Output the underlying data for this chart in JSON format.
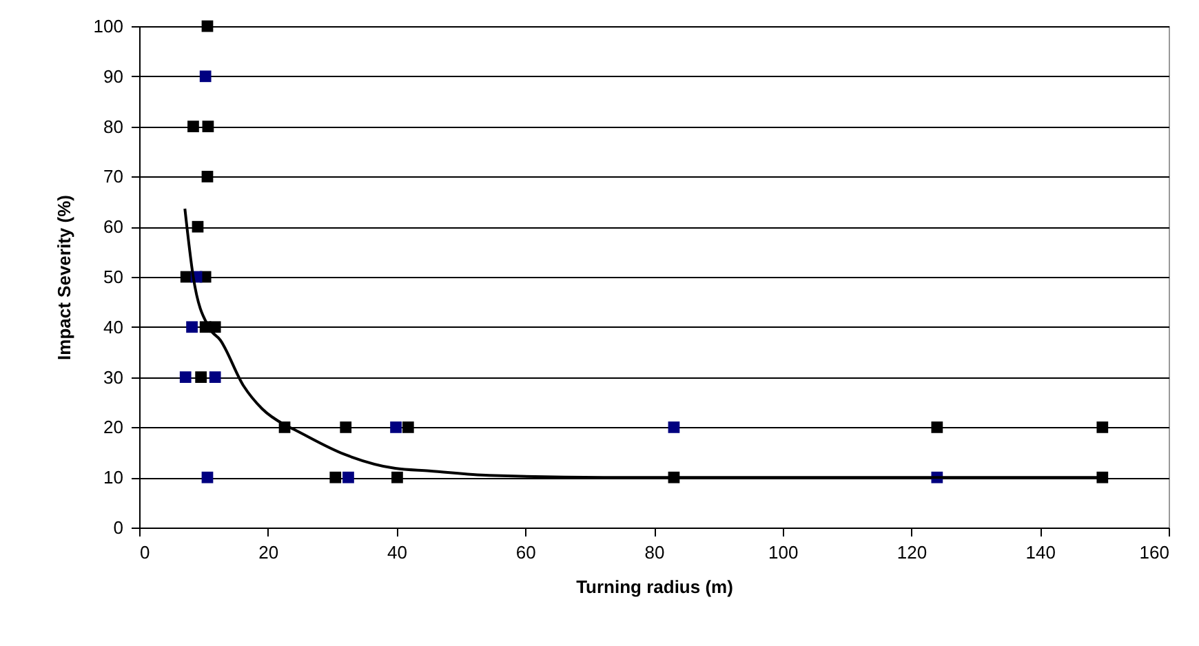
{
  "chart_data": {
    "type": "scatter",
    "xlabel": "Turning radius (m)",
    "ylabel": "Impact Severity (%)",
    "xlim": [
      0,
      160
    ],
    "xticks": [
      0,
      20,
      40,
      60,
      80,
      100,
      120,
      140,
      160
    ],
    "ylim": [
      0,
      100
    ],
    "yticks": [
      0,
      10,
      20,
      30,
      40,
      50,
      60,
      70,
      80,
      90,
      100
    ],
    "grid": "y",
    "marker": "square",
    "series": [
      {
        "color": "#000000",
        "x": [
          10.6,
          8.4,
          10.7,
          10.6,
          9.1,
          7.3,
          10.3,
          10.3,
          11.8,
          9.6,
          22.6,
          32.1,
          41.8,
          124,
          149.7,
          30.5,
          40.1,
          83.1,
          149.7
        ],
        "values": [
          100,
          80,
          80,
          70,
          60,
          50,
          50,
          40,
          40,
          30,
          20,
          20,
          20,
          20,
          20,
          10,
          10,
          10,
          10
        ]
      },
      {
        "color": "#000080",
        "x": [
          10.3,
          8.9,
          8.2,
          7.2,
          11.8,
          39.9,
          83.1,
          10.6,
          32.5,
          124
        ],
        "values": [
          90,
          50,
          40,
          30,
          30,
          20,
          20,
          10,
          10,
          10
        ]
      },
      {
        "type": "line",
        "marker": "none",
        "color": "#000000",
        "x": [
          7.1,
          8.4,
          10.9,
          12.6,
          16.2,
          19.1,
          22.6,
          24,
          31.9,
          39.8,
          45.1,
          54.4,
          72.2,
          100,
          150
        ],
        "values": [
          63.6,
          50,
          39.8,
          37.4,
          28.3,
          23.7,
          20.5,
          19.6,
          14.6,
          11.8,
          11.3,
          10.4,
          10,
          10,
          10
        ]
      }
    ]
  }
}
